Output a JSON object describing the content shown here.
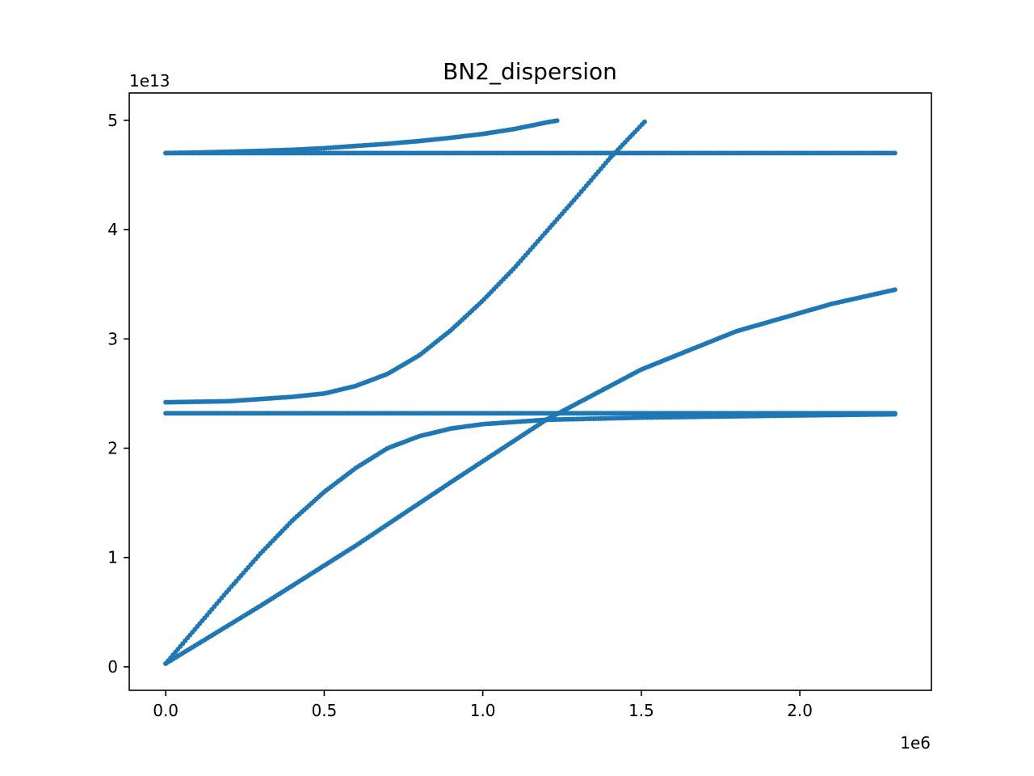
{
  "chart_data": {
    "type": "scatter",
    "title": "BN2_dispersion",
    "xlabel": "",
    "ylabel": "",
    "x_offset_label": "1e6",
    "y_offset_label": "1e13",
    "xlim": [
      -115000,
      2415000
    ],
    "ylim": [
      -2150000000000,
      52500000000000
    ],
    "x_ticks": [
      0,
      500000,
      1000000,
      1500000,
      2000000
    ],
    "x_tick_labels": [
      "0.0",
      "0.5",
      "1.0",
      "1.5",
      "2.0"
    ],
    "y_ticks": [
      0,
      10000000000000,
      20000000000000,
      30000000000000,
      40000000000000,
      50000000000000
    ],
    "y_tick_labels": [
      "0",
      "1",
      "2",
      "3",
      "4",
      "5"
    ],
    "grid": false,
    "color": "#1f77b4",
    "series": [
      {
        "x": [
          0,
          100000,
          200000,
          300000,
          400000,
          500000,
          600000,
          700000,
          800000,
          900000,
          1000000,
          1100000,
          1200000,
          1240000
        ],
        "y": [
          47000000000000,
          47050000000000,
          47120000000000,
          47200000000000,
          47300000000000,
          47450000000000,
          47650000000000,
          47850000000000,
          48100000000000,
          48400000000000,
          48750000000000,
          49200000000000,
          49800000000000,
          50000000000000
        ]
      },
      {
        "x": [
          0,
          2300000
        ],
        "y": [
          47000000000000,
          47000000000000
        ]
      },
      {
        "x": [
          0,
          200000,
          400000,
          500000,
          600000,
          700000,
          800000,
          900000,
          1000000,
          1100000,
          1200000,
          1300000,
          1400000,
          1515000
        ],
        "y": [
          24200000000000,
          24300000000000,
          24700000000000,
          25000000000000,
          25700000000000,
          26800000000000,
          28500000000000,
          30800000000000,
          33500000000000,
          36500000000000,
          39800000000000,
          43100000000000,
          46500000000000,
          50000000000000
        ]
      },
      {
        "x": [
          0,
          2300000
        ],
        "y": [
          23200000000000,
          23200000000000
        ]
      },
      {
        "x": [
          0,
          100000,
          200000,
          300000,
          400000,
          500000,
          600000,
          700000,
          800000,
          900000,
          1000000,
          1200000,
          1500000,
          2000000,
          2300000
        ],
        "y": [
          300000000000,
          3700000000000,
          7100000000000,
          10400000000000,
          13400000000000,
          16000000000000,
          18200000000000,
          20000000000000,
          21100000000000,
          21800000000000,
          22200000000000,
          22600000000000,
          22800000000000,
          23000000000000,
          23100000000000
        ]
      },
      {
        "x": [
          0,
          300000,
          600000,
          900000,
          1200000,
          1500000,
          1800000,
          2100000,
          2300000
        ],
        "y": [
          300000000000,
          5600000000000,
          11100000000000,
          16900000000000,
          22600000000000,
          27200000000000,
          30700000000000,
          33200000000000,
          34500000000000
        ]
      }
    ]
  }
}
